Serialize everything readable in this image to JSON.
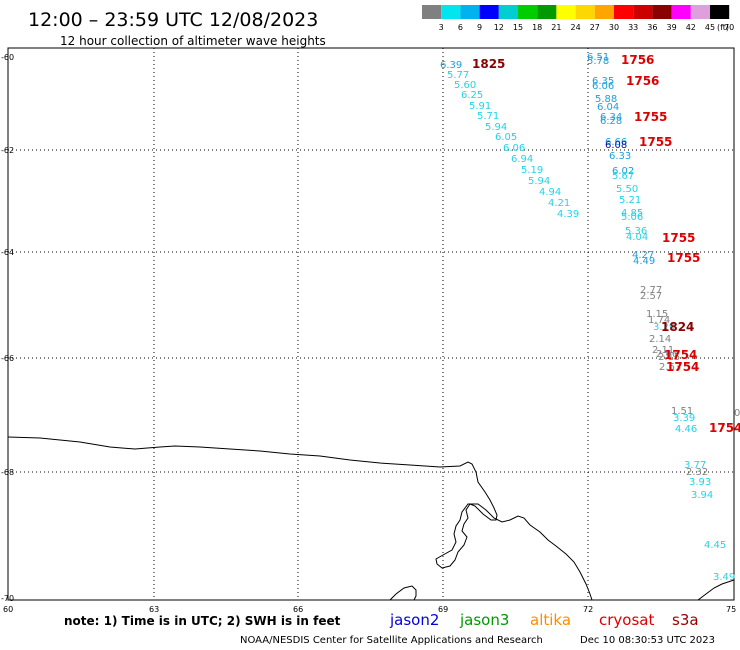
{
  "title": "12:00 – 23:59 UTC 12/08/2023",
  "subtitle": "12 hour collection of altimeter wave heights",
  "legend": {
    "unit": "(ft)",
    "labels": [
      "3",
      "6",
      "9",
      "12",
      "15",
      "18",
      "21",
      "24",
      "27",
      "30",
      "33",
      "36",
      "39",
      "42",
      "45",
      "70"
    ],
    "colors": [
      "#808080",
      "#00e5ee",
      "#00b2ee",
      "#0000ff",
      "#00ced1",
      "#00cd00",
      "#009900",
      "#ffff00",
      "#ffd700",
      "#ffa500",
      "#ff0000",
      "#cd0000",
      "#8b0000",
      "#ff00ff",
      "#dda0dd",
      "#000000"
    ]
  },
  "axes": {
    "lat_labels": [
      "-60",
      "-62",
      "-64",
      "-66",
      "-68",
      "-70"
    ],
    "lon_labels": [
      "60",
      "63",
      "66",
      "69",
      "72",
      "75"
    ]
  },
  "footer": {
    "note": "note: 1) Time is in UTC; 2) SWH is in feet",
    "satellites": [
      {
        "name": "jason2",
        "color": "#0000dd"
      },
      {
        "name": "jason3",
        "color": "#009900"
      },
      {
        "name": "altika",
        "color": "#ff8c00"
      },
      {
        "name": "cryosat",
        "color": "#dd0000"
      },
      {
        "name": "s3a",
        "color": "#990000"
      }
    ],
    "credit": "NOAA/NESDIS Center for Satellite Applications and Research",
    "timestamp": "Dec 10 08:30:53 UTC 2023"
  },
  "times": [
    {
      "text": "1825",
      "color": "#8b0000"
    },
    {
      "text": "1756",
      "color": "#dd0000"
    },
    {
      "text": "1756",
      "color": "#dd0000"
    },
    {
      "text": "1755",
      "color": "#dd0000"
    },
    {
      "text": "1755",
      "color": "#dd0000"
    },
    {
      "text": "1755",
      "color": "#dd0000"
    },
    {
      "text": "1755",
      "color": "#dd0000"
    },
    {
      "text": "1824",
      "color": "#8b0000"
    },
    {
      "text": "1754",
      "color": "#dd0000"
    },
    {
      "text": "1754",
      "color": "#dd0000"
    },
    {
      "text": "1754",
      "color": "#dd0000"
    }
  ],
  "track_a": [
    "6.39",
    "5.77",
    "5.60",
    "6.25",
    "5.91",
    "5.71",
    "5.94",
    "6.05",
    "6.06",
    "6.94",
    "5.19",
    "5.94",
    "4.94",
    "4.21",
    "4.39"
  ],
  "track_b": [
    {
      "v": "6.51",
      "c": "#1ca0e0"
    },
    {
      "v": "5.78",
      "c": "#1ca0e0"
    },
    {
      "v": "6.35",
      "c": "#1ca0e0"
    },
    {
      "v": "6.06",
      "c": "#1ca0e0"
    },
    {
      "v": "5.88",
      "c": "#1ca0e0"
    },
    {
      "v": "6.04",
      "c": "#1ca0e0"
    },
    {
      "v": "6.34",
      "c": "#1ca0e0"
    },
    {
      "v": "6.28",
      "c": "#1ca0e0"
    },
    {
      "v": "6.66",
      "c": "#1ca0e0"
    },
    {
      "v": "6.08",
      "c": "#1010a0"
    },
    {
      "v": "6.33",
      "c": "#1ca0e0"
    },
    {
      "v": "6.02",
      "c": "#1ca0e0"
    },
    {
      "v": "5.67",
      "c": "#22d4e6"
    },
    {
      "v": "5.50",
      "c": "#22d4e6"
    },
    {
      "v": "5.21",
      "c": "#22d4e6"
    },
    {
      "v": "4.85",
      "c": "#22d4e6"
    },
    {
      "v": "5.06",
      "c": "#22d4e6"
    },
    {
      "v": "5.36",
      "c": "#22d4e6"
    },
    {
      "v": "4.04",
      "c": "#22d4e6"
    },
    {
      "v": "4.27",
      "c": "#1ca0e0"
    },
    {
      "v": "4.49",
      "c": "#1ca0e0"
    },
    {
      "v": "2.77",
      "c": "#808080"
    },
    {
      "v": "2.57",
      "c": "#808080"
    },
    {
      "v": "1.15",
      "c": "#808080"
    },
    {
      "v": "1.74",
      "c": "#808080"
    },
    {
      "v": "3.29",
      "c": "#22d4e6"
    },
    {
      "v": "2.14",
      "c": "#808080"
    },
    {
      "v": "2.11",
      "c": "#808080"
    },
    {
      "v": "2.46",
      "c": "#808080"
    },
    {
      "v": "2.15",
      "c": "#808080"
    },
    {
      "v": "2.63",
      "c": "#808080"
    },
    {
      "v": "1.51",
      "c": "#808080"
    },
    {
      "v": "3.39",
      "c": "#22d4e6"
    },
    {
      "v": "4.46",
      "c": "#22d4e6"
    },
    {
      "v": "3.77",
      "c": "#22d4e6"
    },
    {
      "v": "2.32",
      "c": "#808080"
    },
    {
      "v": "3.93",
      "c": "#22d4e6"
    },
    {
      "v": "3.94",
      "c": "#22d4e6"
    },
    {
      "v": "4.45",
      "c": "#22d4e6"
    },
    {
      "v": "3.49",
      "c": "#22d4e6"
    }
  ],
  "edge_value": "0"
}
